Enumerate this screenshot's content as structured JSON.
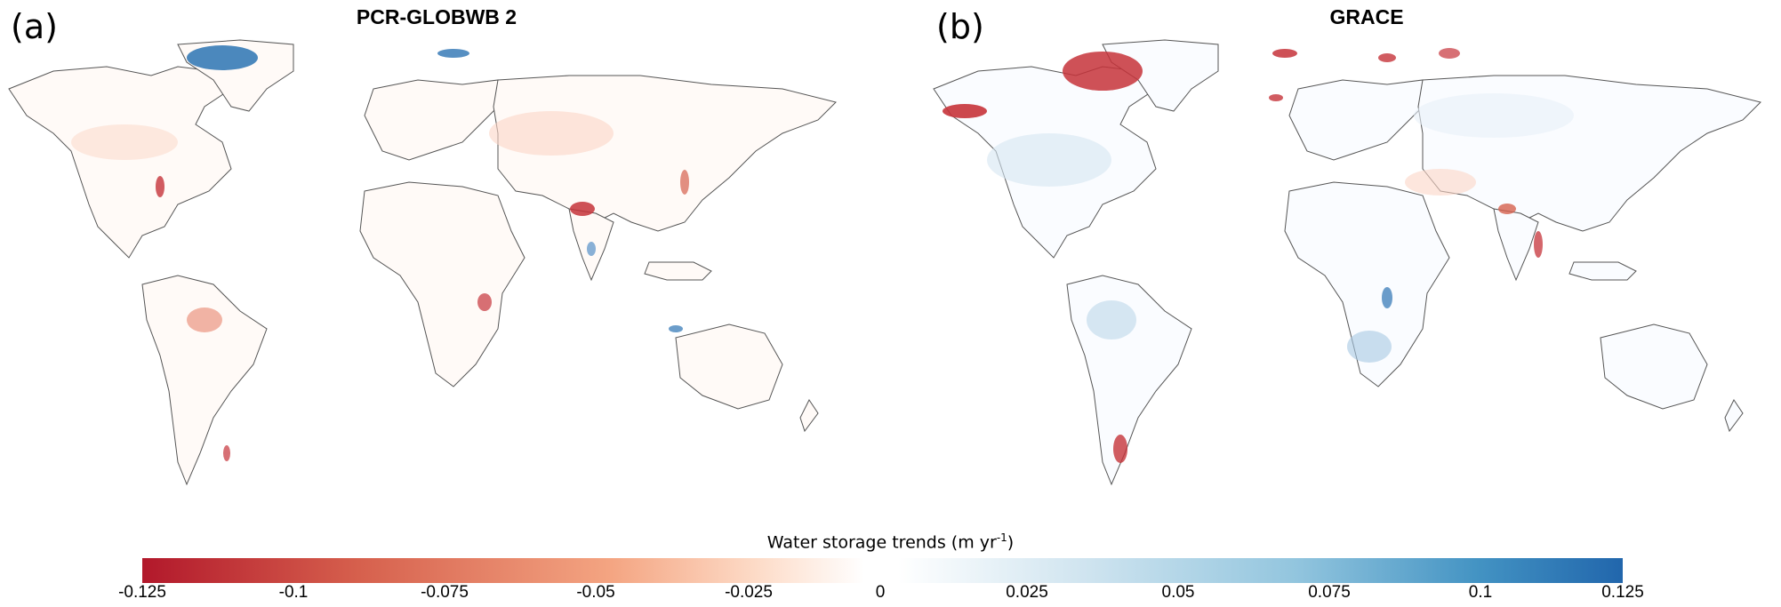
{
  "panels": [
    {
      "letter": "(a)",
      "title": "PCR-GLOBWB 2"
    },
    {
      "letter": "(b)",
      "title": "GRACE"
    }
  ],
  "colorbar": {
    "title": "Water storage trends (m yr",
    "title_sup": "-1",
    "title_end": ")",
    "ticks": [
      "-0.125",
      "-0.1",
      "-0.075",
      "-0.05",
      "-0.025",
      "0",
      "0.025",
      "0.05",
      "0.075",
      "0.1",
      "0.125"
    ],
    "low_color": "#b2182b",
    "mid_color": "#ffffff",
    "high_color": "#2166ac"
  }
}
